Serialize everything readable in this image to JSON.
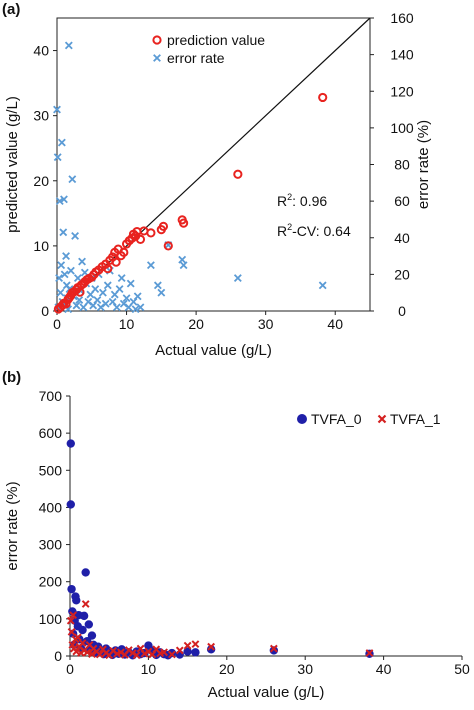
{
  "chart_data": [
    {
      "panel_label": "(a)",
      "type": "scatter",
      "xlabel": "Actual value (g/L)",
      "ylabel": "predicted value (g/L)",
      "y2label": "error rate (%)",
      "xlim": [
        0,
        45
      ],
      "ylim": [
        0,
        45
      ],
      "y2lim": [
        0,
        160
      ],
      "xticks": [
        0,
        10,
        20,
        30,
        40
      ],
      "yticks": [
        0,
        10,
        20,
        30,
        40
      ],
      "y2ticks": [
        0,
        20,
        40,
        60,
        80,
        100,
        120,
        140,
        160
      ],
      "grid": false,
      "legend_position": "top-center",
      "annotations": {
        "r2": {
          "prefix": "R",
          "sup": "2",
          "suffix": ": 0.96"
        },
        "r2cv": {
          "prefix": "R",
          "sup": "2",
          "suffix": "-CV: 0.64"
        }
      },
      "diagonal_line": [
        [
          0,
          0
        ],
        [
          45,
          45
        ]
      ],
      "series": [
        {
          "name": "prediction value",
          "axis": "y",
          "marker": "open-circle",
          "color": "#e8231f",
          "points": [
            [
              0.2,
              0.3
            ],
            [
              0.5,
              0.6
            ],
            [
              0.8,
              0.9
            ],
            [
              1.0,
              1.2
            ],
            [
              1.3,
              1.1
            ],
            [
              1.6,
              1.8
            ],
            [
              1.8,
              2.1
            ],
            [
              2.0,
              2.4
            ],
            [
              2.2,
              2.8
            ],
            [
              2.5,
              3.0
            ],
            [
              2.8,
              3.3
            ],
            [
              3.0,
              3.6
            ],
            [
              3.3,
              2.9
            ],
            [
              3.5,
              4.0
            ],
            [
              3.8,
              4.2
            ],
            [
              4.0,
              4.5
            ],
            [
              4.3,
              4.8
            ],
            [
              4.6,
              5.0
            ],
            [
              5.0,
              5.2
            ],
            [
              5.3,
              5.6
            ],
            [
              5.6,
              6.0
            ],
            [
              6.0,
              6.3
            ],
            [
              6.5,
              6.8
            ],
            [
              7.0,
              7.2
            ],
            [
              7.3,
              6.5
            ],
            [
              7.6,
              7.8
            ],
            [
              8.0,
              8.3
            ],
            [
              8.3,
              9.0
            ],
            [
              8.5,
              7.5
            ],
            [
              8.8,
              9.5
            ],
            [
              9.2,
              8.5
            ],
            [
              9.6,
              9.0
            ],
            [
              10.0,
              10.3
            ],
            [
              10.4,
              10.8
            ],
            [
              10.8,
              11.2
            ],
            [
              11.0,
              11.8
            ],
            [
              11.3,
              11.5
            ],
            [
              11.5,
              12.2
            ],
            [
              12.0,
              11.0
            ],
            [
              12.5,
              12.3
            ],
            [
              13.5,
              12.0
            ],
            [
              15.0,
              12.5
            ],
            [
              15.3,
              13.0
            ],
            [
              16.0,
              10.0
            ],
            [
              18.0,
              14.0
            ],
            [
              18.2,
              13.5
            ],
            [
              26.0,
              21.0
            ],
            [
              38.2,
              32.8
            ]
          ]
        },
        {
          "name": "error rate",
          "axis": "y2",
          "marker": "x",
          "color": "#5b9bd5",
          "points": [
            [
              0.0,
              110
            ],
            [
              0.1,
              84
            ],
            [
              0.2,
              2
            ],
            [
              0.3,
              18
            ],
            [
              0.4,
              60
            ],
            [
              0.5,
              10
            ],
            [
              0.6,
              25
            ],
            [
              0.7,
              92
            ],
            [
              0.8,
              5
            ],
            [
              0.9,
              43
            ],
            [
              1.0,
              61
            ],
            [
              1.1,
              20
            ],
            [
              1.2,
              4
            ],
            [
              1.3,
              30
            ],
            [
              1.4,
              14
            ],
            [
              1.5,
              7
            ],
            [
              1.6,
              1
            ],
            [
              1.7,
              145
            ],
            [
              1.8,
              12
            ],
            [
              2.0,
              22
            ],
            [
              2.2,
              72
            ],
            [
              2.4,
              8
            ],
            [
              2.6,
              41
            ],
            [
              2.8,
              3
            ],
            [
              3.0,
              18
            ],
            [
              3.2,
              6
            ],
            [
              3.4,
              11
            ],
            [
              3.6,
              27
            ],
            [
              3.8,
              2
            ],
            [
              4.0,
              21
            ],
            [
              4.2,
              15
            ],
            [
              4.5,
              5
            ],
            [
              4.8,
              9
            ],
            [
              5.0,
              18
            ],
            [
              5.2,
              3
            ],
            [
              5.5,
              12
            ],
            [
              5.8,
              6
            ],
            [
              6.0,
              20
            ],
            [
              6.3,
              2
            ],
            [
              6.6,
              10
            ],
            [
              7.0,
              4
            ],
            [
              7.3,
              14
            ],
            [
              7.6,
              22
            ],
            [
              8.0,
              5
            ],
            [
              8.3,
              9
            ],
            [
              8.6,
              2
            ],
            [
              9.0,
              12
            ],
            [
              9.3,
              18
            ],
            [
              9.6,
              4
            ],
            [
              10.0,
              7
            ],
            [
              10.3,
              2
            ],
            [
              10.6,
              15
            ],
            [
              11.0,
              5
            ],
            [
              11.3,
              1
            ],
            [
              11.6,
              8
            ],
            [
              12.0,
              2
            ],
            [
              13.5,
              25
            ],
            [
              14.5,
              14
            ],
            [
              15.0,
              10
            ],
            [
              16.0,
              36
            ],
            [
              18.0,
              28
            ],
            [
              18.2,
              25
            ],
            [
              26.0,
              18
            ],
            [
              38.2,
              14
            ]
          ]
        }
      ]
    },
    {
      "panel_label": "(b)",
      "type": "scatter",
      "xlabel": "Actual value (g/L)",
      "ylabel": "error rate (%)",
      "xlim": [
        0,
        50
      ],
      "ylim": [
        0,
        700
      ],
      "xticks": [
        0,
        10,
        20,
        30,
        40,
        50
      ],
      "yticks": [
        0,
        100,
        200,
        300,
        400,
        500,
        600,
        700
      ],
      "grid": false,
      "legend_position": "top-right",
      "series": [
        {
          "name": "TVFA_0",
          "marker": "filled-circle",
          "color": "#1f1fa8",
          "points": [
            [
              0.1,
              572
            ],
            [
              0.1,
              408
            ],
            [
              0.2,
              180
            ],
            [
              0.3,
              120
            ],
            [
              0.4,
              60
            ],
            [
              0.5,
              30
            ],
            [
              0.6,
              95
            ],
            [
              0.7,
              160
            ],
            [
              0.8,
              150
            ],
            [
              1.0,
              80
            ],
            [
              1.1,
              110
            ],
            [
              1.2,
              45
            ],
            [
              1.4,
              20
            ],
            [
              1.6,
              70
            ],
            [
              1.8,
              108
            ],
            [
              2.0,
              225
            ],
            [
              2.2,
              40
            ],
            [
              2.4,
              85
            ],
            [
              2.6,
              15
            ],
            [
              2.8,
              55
            ],
            [
              3.0,
              30
            ],
            [
              3.3,
              8
            ],
            [
              3.6,
              25
            ],
            [
              4.0,
              12
            ],
            [
              4.3,
              5
            ],
            [
              4.6,
              20
            ],
            [
              5.0,
              10
            ],
            [
              5.4,
              3
            ],
            [
              5.8,
              15
            ],
            [
              6.2,
              6
            ],
            [
              6.6,
              18
            ],
            [
              7.0,
              4
            ],
            [
              7.5,
              10
            ],
            [
              8.0,
              2
            ],
            [
              8.5,
              12
            ],
            [
              9.0,
              5
            ],
            [
              9.5,
              8
            ],
            [
              10.0,
              28
            ],
            [
              10.5,
              15
            ],
            [
              11.0,
              3
            ],
            [
              11.5,
              10
            ],
            [
              12.0,
              5
            ],
            [
              12.5,
              2
            ],
            [
              13.0,
              8
            ],
            [
              14.0,
              4
            ],
            [
              15.0,
              12
            ],
            [
              16.0,
              10
            ],
            [
              18.0,
              18
            ],
            [
              26.0,
              15
            ],
            [
              38.2,
              6
            ]
          ]
        },
        {
          "name": "TVFA_1",
          "marker": "x",
          "color": "#d42020",
          "points": [
            [
              0.1,
              95
            ],
            [
              0.2,
              65
            ],
            [
              0.3,
              30
            ],
            [
              0.4,
              110
            ],
            [
              0.5,
              20
            ],
            [
              0.7,
              45
            ],
            [
              0.8,
              12
            ],
            [
              1.0,
              50
            ],
            [
              1.2,
              25
            ],
            [
              1.4,
              8
            ],
            [
              1.6,
              35
            ],
            [
              1.8,
              15
            ],
            [
              2.0,
              140
            ],
            [
              2.2,
              10
            ],
            [
              2.5,
              30
            ],
            [
              2.8,
              5
            ],
            [
              3.0,
              20
            ],
            [
              3.4,
              12
            ],
            [
              3.8,
              4
            ],
            [
              4.2,
              18
            ],
            [
              4.6,
              8
            ],
            [
              5.0,
              2
            ],
            [
              5.5,
              14
            ],
            [
              6.0,
              6
            ],
            [
              6.5,
              10
            ],
            [
              7.0,
              3
            ],
            [
              7.5,
              16
            ],
            [
              8.0,
              8
            ],
            [
              8.5,
              2
            ],
            [
              9.0,
              20
            ],
            [
              9.5,
              6
            ],
            [
              10.0,
              12
            ],
            [
              10.5,
              4
            ],
            [
              11.0,
              18
            ],
            [
              11.5,
              7
            ],
            [
              12.0,
              10
            ],
            [
              13.0,
              4
            ],
            [
              14.0,
              15
            ],
            [
              15.0,
              28
            ],
            [
              16.0,
              32
            ],
            [
              18.0,
              25
            ],
            [
              26.0,
              20
            ],
            [
              38.2,
              8
            ]
          ]
        }
      ]
    }
  ]
}
